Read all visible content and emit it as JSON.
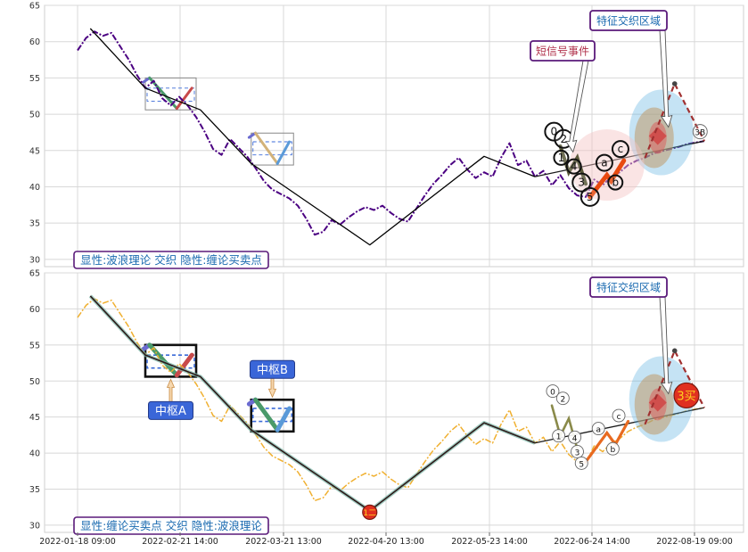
{
  "chart_data": [
    {
      "type": "line",
      "panel": "top",
      "ylim": [
        29,
        65
      ],
      "yticks": [
        30,
        35,
        40,
        45,
        50,
        55,
        60,
        65
      ],
      "grid": true,
      "legend_label": "显性:波浪理论 交织 隐性:缠论买卖点",
      "series": [
        {
          "style": "price",
          "color": "#4b0082",
          "x": [
            0,
            2,
            4,
            6,
            8,
            10,
            12,
            14,
            16,
            18,
            20,
            22,
            24,
            26,
            28,
            30,
            32,
            34,
            36,
            38,
            40,
            42,
            44,
            46,
            48,
            50,
            52,
            54,
            56,
            58,
            60,
            62,
            64,
            66,
            68,
            70,
            72,
            74,
            76,
            78,
            80,
            82,
            84,
            86,
            88,
            90,
            92,
            94,
            96,
            98,
            100,
            102,
            104,
            106,
            108,
            110,
            112,
            114,
            116,
            118,
            120,
            122,
            124,
            126,
            128,
            130,
            132,
            134,
            136,
            138,
            140,
            142,
            144,
            146,
            148
          ],
          "y": [
            58.8,
            60.5,
            61.4,
            60.8,
            61.2,
            59.4,
            57.6,
            55.4,
            53.6,
            54.6,
            52.2,
            51.2,
            52.4,
            51.2,
            49.6,
            47.6,
            45.2,
            44.4,
            46.6,
            45.4,
            44.2,
            42.6,
            40.8,
            39.6,
            39.0,
            38.4,
            37.4,
            35.6,
            33.4,
            33.8,
            35.4,
            34.8,
            35.8,
            36.6,
            37.2,
            36.8,
            37.4,
            36.4,
            35.6,
            35.2,
            37.0,
            38.8,
            40.4,
            41.6,
            43.0,
            44.0,
            42.4,
            41.2,
            42.0,
            41.4,
            44.0,
            46.0,
            43.0,
            43.6,
            41.4,
            42.2,
            40.2,
            41.6,
            39.8,
            38.8,
            38.6,
            41.0,
            40.2,
            41.4,
            42.0,
            43.0,
            43.6,
            44.0,
            44.6,
            44.9,
            45.2,
            45.5,
            45.9,
            46.1,
            46.3
          ]
        },
        {
          "style": "wave_zigzag",
          "color": "#000000",
          "x": [
            3,
            16,
            29,
            41,
            69,
            96,
            108
          ],
          "y": [
            61.8,
            53.6,
            50.6,
            43.2,
            32.0,
            44.2,
            41.4
          ]
        }
      ],
      "pivot_zones": [
        {
          "x_range": [
            16,
            28
          ],
          "y_range": [
            50.6,
            55.0
          ],
          "inner_y": [
            51.8,
            53.6
          ]
        },
        {
          "x_range": [
            41,
            51
          ],
          "y_range": [
            43.0,
            47.4
          ],
          "inner_y": [
            44.4,
            46.2
          ]
        }
      ],
      "point_labels": [
        "0",
        "2",
        "1",
        "4",
        "3",
        "5",
        "a",
        "b",
        "c",
        "3B"
      ],
      "annotations": [
        "特征交织区域",
        "短信号事件"
      ]
    },
    {
      "type": "line",
      "panel": "bottom",
      "ylim": [
        29,
        65
      ],
      "yticks": [
        30,
        35,
        40,
        45,
        50,
        55,
        60,
        65
      ],
      "grid": true,
      "legend_label": "显性:缠论买卖点 交织 隐性:波浪理论",
      "x_tick_labels": [
        "2022-01-18 09:00",
        "2022-02-21 14:00",
        "2022-03-21 13:00",
        "2022-04-20 13:00",
        "2022-05-23 14:00",
        "2022-06-24 14:00",
        "2022-08-19 09:00"
      ],
      "series": [
        {
          "style": "price",
          "color": "#f0b030",
          "x": [
            0,
            2,
            4,
            6,
            8,
            10,
            12,
            14,
            16,
            18,
            20,
            22,
            24,
            26,
            28,
            30,
            32,
            34,
            36,
            38,
            40,
            42,
            44,
            46,
            48,
            50,
            52,
            54,
            56,
            58,
            60,
            62,
            64,
            66,
            68,
            70,
            72,
            74,
            76,
            78,
            80,
            82,
            84,
            86,
            88,
            90,
            92,
            94,
            96,
            98,
            100,
            102,
            104,
            106,
            108,
            110,
            112,
            114,
            116,
            118,
            120,
            122,
            124,
            126,
            128,
            130,
            132,
            134,
            136,
            138,
            140,
            142,
            144,
            146,
            148
          ],
          "y": [
            58.8,
            60.5,
            61.4,
            60.8,
            61.2,
            59.4,
            57.6,
            55.4,
            53.6,
            54.6,
            52.2,
            51.2,
            52.4,
            51.2,
            49.6,
            47.6,
            45.2,
            44.4,
            46.6,
            45.4,
            44.2,
            42.6,
            40.8,
            39.6,
            39.0,
            38.4,
            37.4,
            35.6,
            33.4,
            33.8,
            35.4,
            34.8,
            35.8,
            36.6,
            37.2,
            36.8,
            37.4,
            36.4,
            35.6,
            35.2,
            37.0,
            38.8,
            40.4,
            41.6,
            43.0,
            44.0,
            42.4,
            41.2,
            42.0,
            41.4,
            44.0,
            46.0,
            43.0,
            43.6,
            41.4,
            42.2,
            40.2,
            41.6,
            39.8,
            38.8,
            38.6,
            41.0,
            40.2,
            41.4,
            42.0,
            43.0,
            43.6,
            44.0,
            44.6,
            44.9,
            45.2,
            45.5,
            45.9,
            46.1,
            46.3
          ]
        },
        {
          "style": "bi_stroke",
          "color": "#2e1a1a",
          "x": [
            3,
            16,
            29,
            41,
            69,
            96,
            108
          ],
          "y": [
            61.8,
            53.6,
            50.6,
            43.2,
            32.0,
            44.2,
            41.4
          ]
        }
      ],
      "pivot_zones": [
        {
          "label": "中枢A",
          "x_range": [
            16,
            28
          ],
          "y_range": [
            50.6,
            55.0
          ],
          "inner_y": [
            51.8,
            53.6
          ]
        },
        {
          "label": "中枢B",
          "x_range": [
            41,
            51
          ],
          "y_range": [
            43.0,
            47.4
          ],
          "inner_y": [
            44.4,
            46.2
          ]
        }
      ],
      "point_labels": [
        "0",
        "2",
        "1",
        "4",
        "3",
        "5",
        "a",
        "b",
        "c"
      ],
      "signals": [
        {
          "label": "1二",
          "x": 69,
          "y": 31.8
        },
        {
          "label": "3买",
          "x": 140,
          "y": 48.0
        }
      ],
      "annotations": [
        "特征交织区域"
      ]
    }
  ],
  "colors": {
    "grid": "#d8d8d8",
    "annotation_border": "#5a1a7a",
    "annotation_text_blue": "#1a6ab0",
    "annotation_text_red": "#b0304a",
    "pivot_label_bg": "#3a66d8",
    "signal_fill": "#e03020",
    "signal_text": "#ffd21e"
  }
}
